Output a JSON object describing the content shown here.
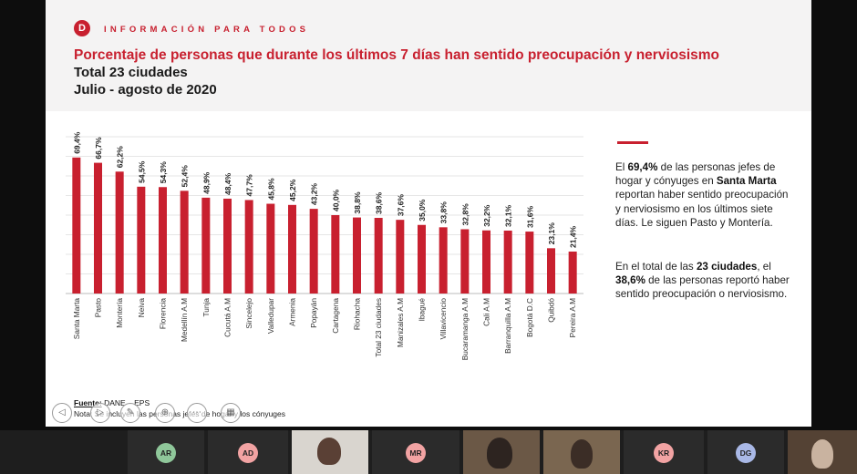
{
  "slide": {
    "logo_letter": "D",
    "tagline": "INFORMACIÓN PARA TODOS",
    "title": "Porcentaje de personas que durante los últimos 7 días han sentido preocupación y nerviosismo",
    "subtitle1": "Total 23 ciudades",
    "subtitle2": "Julio - agosto de 2020",
    "source_label": "Fuente:",
    "source_text": " DANE – EPS",
    "note": "Nota: Se incluyen las personas jefes de hogar y los cónyuges"
  },
  "chart_data": {
    "type": "bar",
    "categories": [
      "Santa Marta",
      "Pasto",
      "Montería",
      "Neiva",
      "Florencia",
      "Medellín A.M",
      "Tunja",
      "Cucutá A.M",
      "Sincelejo",
      "Valledupar",
      "Armenia",
      "Popayán",
      "Cartagena",
      "Riohacha",
      "Total 23 ciudades",
      "Manizales A.M",
      "Ibagué",
      "Villavicencio",
      "Bucaramanga A.M",
      "Cali A.M",
      "Barranquilla A.M",
      "Bogotá D.C",
      "Quibdó",
      "Pereira A.M"
    ],
    "values": [
      69.4,
      66.7,
      62.2,
      54.5,
      54.3,
      52.4,
      48.9,
      48.4,
      47.7,
      45.8,
      45.2,
      43.2,
      40.0,
      38.8,
      38.6,
      37.6,
      35.0,
      33.8,
      32.8,
      32.2,
      32.1,
      31.6,
      23.1,
      21.4
    ],
    "labels": [
      "69,4%",
      "66,7%",
      "62,2%",
      "54,5%",
      "54,3%",
      "52,4%",
      "48,9%",
      "48,4%",
      "47,7%",
      "45,8%",
      "45,2%",
      "43,2%",
      "40,0%",
      "38,8%",
      "38,6%",
      "37,6%",
      "35,0%",
      "33,8%",
      "32,8%",
      "32,2%",
      "32,1%",
      "31,6%",
      "23,1%",
      "21,4%"
    ],
    "ylim": [
      0,
      80
    ],
    "grid": true,
    "color": "#c8202f"
  },
  "side_text": {
    "p1": [
      {
        "t": "El ",
        "b": false
      },
      {
        "t": "69,4%",
        "b": true
      },
      {
        "t": " de las personas jefes de hogar y cónyuges en ",
        "b": false
      },
      {
        "t": "Santa Marta",
        "b": true
      },
      {
        "t": " reportan haber sentido preocupación y nerviosismo en los últimos siete días. Le siguen Pasto y Montería.",
        "b": false
      }
    ],
    "p2": [
      {
        "t": "En el total de las ",
        "b": false
      },
      {
        "t": "23 ciudades",
        "b": true
      },
      {
        "t": ", el ",
        "b": false
      },
      {
        "t": "38,6%",
        "b": true
      },
      {
        "t": " de las personas reportó haber sentido preocupación o nerviosismo.",
        "b": false
      }
    ]
  },
  "controls": [
    {
      "name": "prev-slide-button",
      "glyph": "◁"
    },
    {
      "name": "next-slide-button",
      "glyph": "▷"
    },
    {
      "name": "pen-tool-button",
      "glyph": "✎"
    },
    {
      "name": "zoom-button",
      "glyph": "⊕"
    },
    {
      "name": "more-options-button",
      "glyph": "⋯"
    },
    {
      "name": "grid-view-button",
      "glyph": "▦"
    }
  ],
  "participants": [
    {
      "initials": "AR",
      "color": "#8fc79a"
    },
    {
      "initials": "AD",
      "color": "#f2a3a3"
    },
    {
      "initials": "MR",
      "color": "#f2a3a3"
    },
    {
      "initials": "KR",
      "color": "#f2a3a3"
    },
    {
      "initials": "DG",
      "color": "#a9b8e6"
    }
  ]
}
